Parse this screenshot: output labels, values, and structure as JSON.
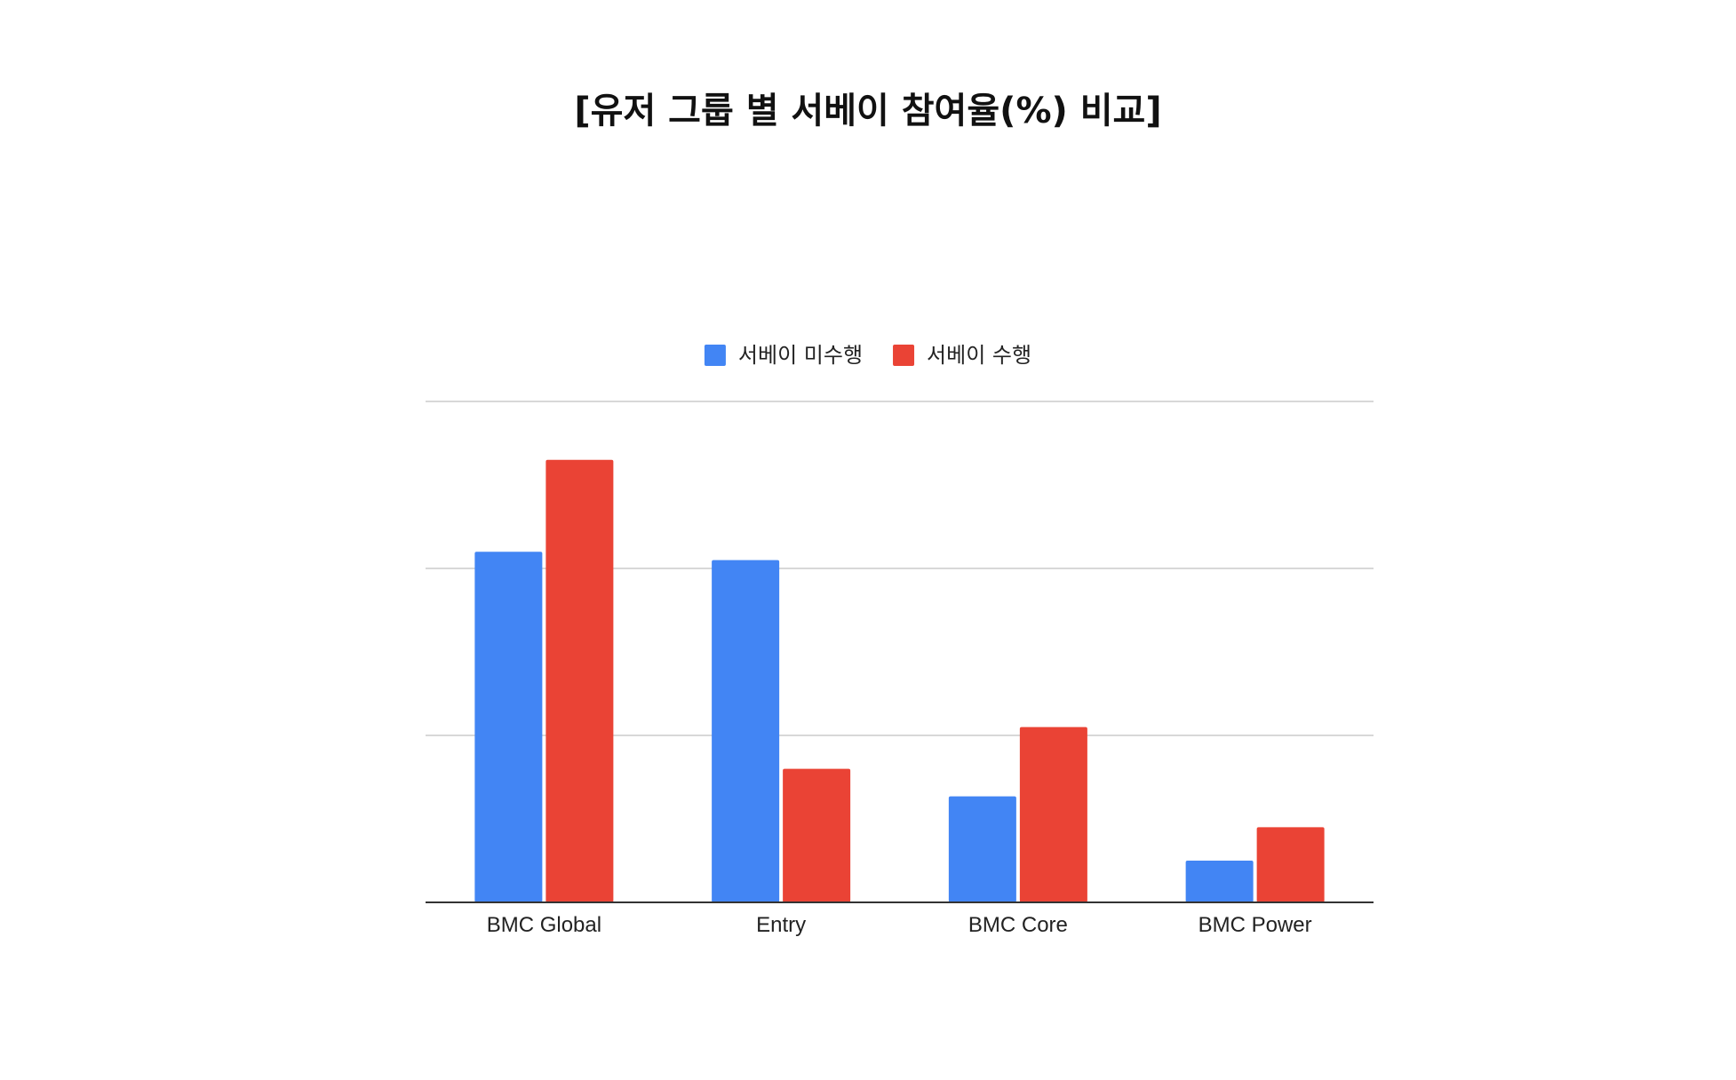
{
  "chart_data": {
    "type": "bar",
    "title": "[유저 그룹 별 서베이 참여율(%) 비교]",
    "xlabel": "",
    "ylabel": "",
    "categories": [
      "BMC Global",
      "Entry",
      "BMC Core",
      "BMC Power"
    ],
    "series": [
      {
        "name": "서베이 미수행",
        "color": "#4285f4",
        "values": [
          42,
          41,
          12.7,
          5
        ]
      },
      {
        "name": "서베이 수행",
        "color": "#ea4335",
        "values": [
          53,
          16,
          21,
          9
        ]
      }
    ],
    "ylim": [
      0,
      60
    ],
    "yticks": [
      0,
      20,
      40,
      60
    ],
    "show_y_tick_labels": false,
    "grid": true,
    "legend_position": "top-center",
    "gridline_color": "#cccccc",
    "axis_color": "#333333"
  }
}
